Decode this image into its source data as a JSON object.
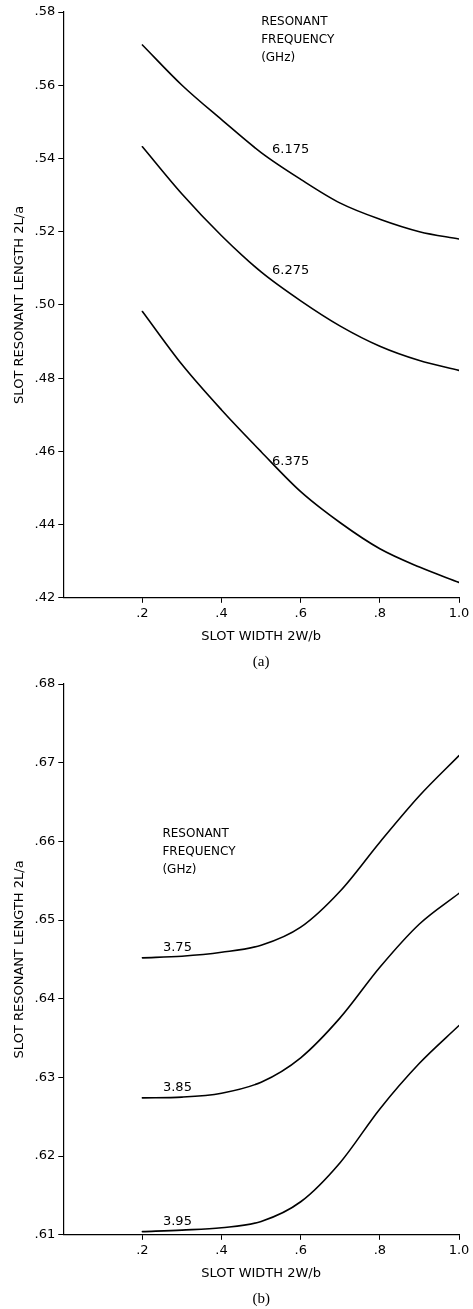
{
  "chart_data": [
    {
      "type": "line",
      "xlabel": "SLOT WIDTH 2W/b",
      "ylabel": "SLOT RESONANT LENGTH 2L/a",
      "legend_title": "RESONANT FREQUENCY (GHz)",
      "annotations": [
        "(a)"
      ],
      "x": [
        0.2,
        0.3,
        0.4,
        0.5,
        0.6,
        0.7,
        0.8,
        0.9,
        1.0
      ],
      "series": [
        {
          "name": "6.175",
          "color": "#000000",
          "values": [
            0.571,
            0.56,
            0.5506,
            0.5416,
            0.5343,
            0.5278,
            0.5234,
            0.52,
            0.518
          ]
        },
        {
          "name": "6.275",
          "color": "#000000",
          "values": [
            0.5432,
            0.5303,
            0.5189,
            0.509,
            0.5011,
            0.4942,
            0.4887,
            0.4848,
            0.4821
          ]
        },
        {
          "name": "6.375",
          "color": "#000000",
          "values": [
            0.4982,
            0.4837,
            0.4713,
            0.4599,
            0.449,
            0.4405,
            0.4334,
            0.4284,
            0.4242
          ]
        }
      ],
      "xlim": [
        0,
        1
      ],
      "xticks": [
        {
          "value": 0.2,
          "label": ".2"
        },
        {
          "value": 0.4,
          "label": ".4"
        },
        {
          "value": 0.6,
          "label": ".6"
        },
        {
          "value": 0.8,
          "label": ".8"
        },
        {
          "value": 1.0,
          "label": "1.0"
        }
      ],
      "ylim": [
        0.42,
        0.58
      ],
      "yticks": [
        {
          "value": 0.42,
          "label": ".42"
        },
        {
          "value": 0.44,
          "label": ".44"
        },
        {
          "value": 0.46,
          "label": ".46"
        },
        {
          "value": 0.48,
          "label": ".48"
        },
        {
          "value": 0.5,
          "label": ".50"
        },
        {
          "value": 0.52,
          "label": ".52"
        },
        {
          "value": 0.54,
          "label": ".54"
        },
        {
          "value": 0.56,
          "label": ".56"
        },
        {
          "value": 0.58,
          "label": ".58"
        }
      ],
      "grid": false,
      "legend": false
    },
    {
      "type": "line",
      "xlabel": "SLOT WIDTH 2W/b",
      "ylabel": "SLOT RESONANT LENGTH 2L/a",
      "legend_title": "RESONANT FREQUENCY (GHz)",
      "annotations": [
        "(b)"
      ],
      "x": [
        0.2,
        0.3,
        0.4,
        0.5,
        0.6,
        0.7,
        0.8,
        0.9,
        1.0
      ],
      "series": [
        {
          "name": "3.75",
          "color": "#000000",
          "values": [
            0.6452,
            0.6454,
            0.6459,
            0.6468,
            0.6491,
            0.6537,
            0.6599,
            0.6658,
            0.6709
          ]
        },
        {
          "name": "3.85",
          "color": "#000000",
          "values": [
            0.6274,
            0.6275,
            0.628,
            0.6294,
            0.6325,
            0.6376,
            0.644,
            0.6495,
            0.6534
          ]
        },
        {
          "name": "3.95",
          "color": "#000000",
          "values": [
            0.6104,
            0.6106,
            0.6109,
            0.6117,
            0.6142,
            0.6192,
            0.626,
            0.6318,
            0.6366
          ]
        }
      ],
      "xlim": [
        0,
        1
      ],
      "xticks": [
        {
          "value": 0.2,
          "label": ".2"
        },
        {
          "value": 0.4,
          "label": ".4"
        },
        {
          "value": 0.6,
          "label": ".6"
        },
        {
          "value": 0.8,
          "label": ".8"
        },
        {
          "value": 1.0,
          "label": "1.0"
        }
      ],
      "ylim": [
        0.61,
        0.68
      ],
      "yticks": [
        {
          "value": 0.61,
          "label": ".61"
        },
        {
          "value": 0.62,
          "label": ".62"
        },
        {
          "value": 0.63,
          "label": ".63"
        },
        {
          "value": 0.64,
          "label": ".64"
        },
        {
          "value": 0.65,
          "label": ".65"
        },
        {
          "value": 0.66,
          "label": ".66"
        },
        {
          "value": 0.67,
          "label": ".67"
        },
        {
          "value": 0.68,
          "label": ".68"
        }
      ],
      "grid": false,
      "legend": false
    }
  ]
}
